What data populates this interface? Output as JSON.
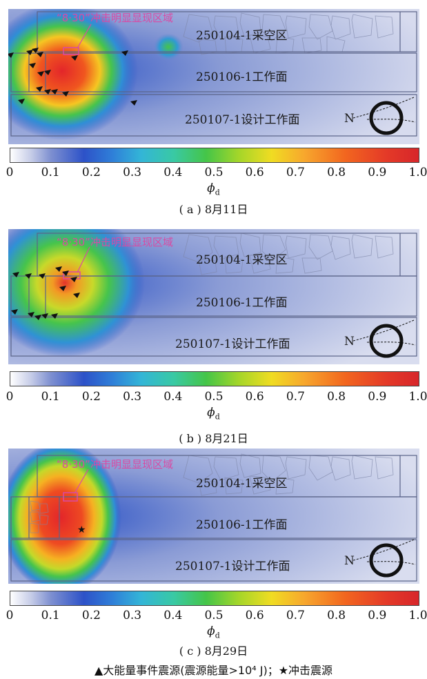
{
  "chart_data": [
    {
      "type": "heatmap",
      "caption": "( a ) 8月11日",
      "colorbar": {
        "label": "ϕ",
        "label_sub": "d",
        "ticks": [
          "0",
          "0.1",
          "0.2",
          "0.3",
          "0.4",
          "0.5",
          "0.6",
          "0.7",
          "0.8",
          "0.9",
          "1.0"
        ],
        "range": [
          0,
          1.0
        ]
      },
      "regions": [
        "250104-1采空区",
        "250106-1工作面",
        "250107-1设计工作面"
      ],
      "annotation": "“8·30”冲击明显显现区域",
      "north_label": "N"
    },
    {
      "type": "heatmap",
      "caption": "( b ) 8月21日",
      "colorbar": {
        "label": "ϕ",
        "label_sub": "d",
        "ticks": [
          "0",
          "0.1",
          "0.2",
          "0.3",
          "0.4",
          "0.5",
          "0.6",
          "0.7",
          "0.8",
          "0.9",
          "1.0"
        ],
        "range": [
          0,
          1.0
        ]
      },
      "regions": [
        "250104-1采空区",
        "250106-1工作面",
        "250107-1设计工作面"
      ],
      "annotation": "“8·30”冲击明显显现区域",
      "north_label": "N"
    },
    {
      "type": "heatmap",
      "caption": "( c ) 8月29日",
      "colorbar": {
        "label": "ϕ",
        "label_sub": "d",
        "ticks": [
          "0",
          "0.1",
          "0.2",
          "0.3",
          "0.4",
          "0.5",
          "0.6",
          "0.7",
          "0.8",
          "0.9",
          "1.0"
        ],
        "range": [
          0,
          1.0
        ]
      },
      "regions": [
        "250104-1采空区",
        "250106-1工作面",
        "250107-1设计工作面"
      ],
      "annotation": "“8·30”冲击明显显现区域",
      "north_label": "N"
    }
  ],
  "legend_text": "▲大能量事件震源(震源能量>10⁴ J)；★冲击震源"
}
